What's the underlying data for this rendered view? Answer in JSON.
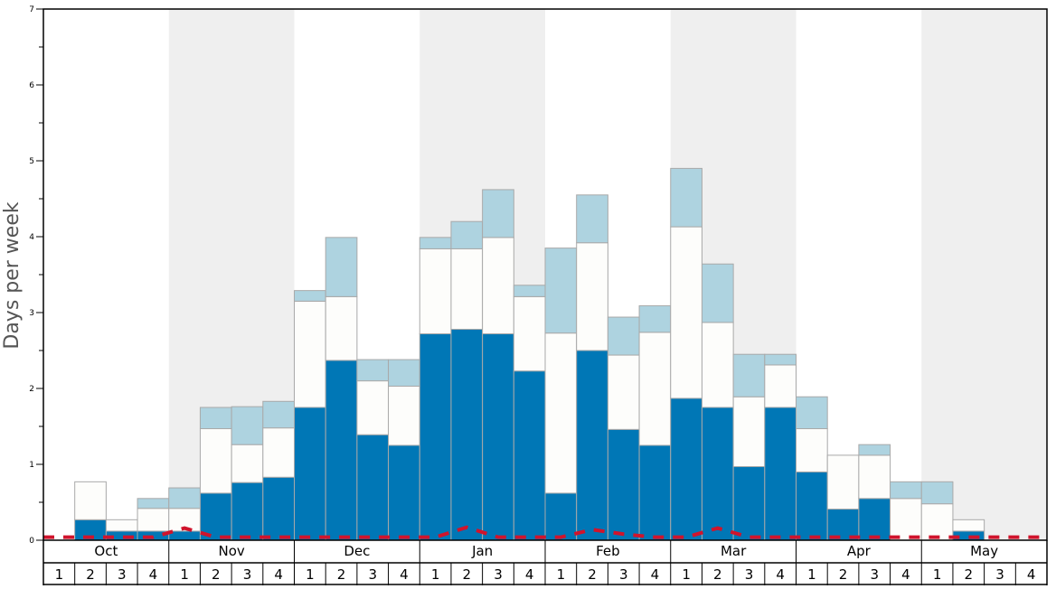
{
  "chart_data": {
    "type": "bar",
    "stacked": true,
    "ylabel": "Days per week",
    "ylim": [
      0,
      7
    ],
    "yticks": [
      "0",
      "1",
      "2",
      "3",
      "4",
      "5",
      "6",
      "7"
    ],
    "months": [
      "Oct",
      "Nov",
      "Dec",
      "Jan",
      "Feb",
      "Mar",
      "Apr",
      "May"
    ],
    "week_labels": [
      "1",
      "2",
      "3",
      "4"
    ],
    "grid": false,
    "colors": {
      "series_1": "#0077b6",
      "series_2": "#fdfdfb",
      "series_3": "#aed3e0",
      "trend_line": "#d0142c",
      "band_shade": "#efefef",
      "bar_edge": "#a9a9a9"
    },
    "series": [
      {
        "values": [
          0,
          0.27,
          0.12,
          0.12,
          0.12,
          0.62,
          0.76,
          0.83,
          1.75,
          2.37,
          1.39,
          1.25,
          2.72,
          2.78,
          2.72,
          2.23,
          0.62,
          2.5,
          1.46,
          1.25,
          1.87,
          1.75,
          0.97,
          1.75,
          0.9,
          0.41,
          0.55,
          0,
          0,
          0.12,
          0,
          0
        ]
      },
      {
        "values": [
          0,
          0.5,
          0.15,
          0.3,
          0.3,
          0.85,
          0.5,
          0.65,
          1.4,
          0.84,
          0.71,
          0.78,
          1.12,
          1.06,
          1.27,
          0.98,
          2.11,
          1.42,
          0.98,
          1.49,
          2.26,
          1.12,
          0.92,
          0.56,
          0.57,
          0.71,
          0.57,
          0.55,
          0.48,
          0.15,
          0,
          0
        ]
      },
      {
        "values": [
          0,
          0,
          0,
          0.13,
          0.27,
          0.28,
          0.5,
          0.35,
          0.14,
          0.78,
          0.28,
          0.35,
          0.15,
          0.36,
          0.63,
          0.15,
          1.12,
          0.63,
          0.5,
          0.35,
          0.77,
          0.77,
          0.56,
          0.14,
          0.42,
          0,
          0.14,
          0.22,
          0.29,
          0,
          0,
          0
        ]
      }
    ],
    "trend_values": [
      0.04,
      0.04,
      0.04,
      0.04,
      0.16,
      0.04,
      0.04,
      0.04,
      0.04,
      0.04,
      0.04,
      0.04,
      0.04,
      0.17,
      0.04,
      0.04,
      0.04,
      0.14,
      0.08,
      0.04,
      0.04,
      0.16,
      0.04,
      0.04,
      0.04,
      0.04,
      0.04,
      0.04,
      0.04,
      0.04,
      0.04,
      0.04
    ]
  }
}
